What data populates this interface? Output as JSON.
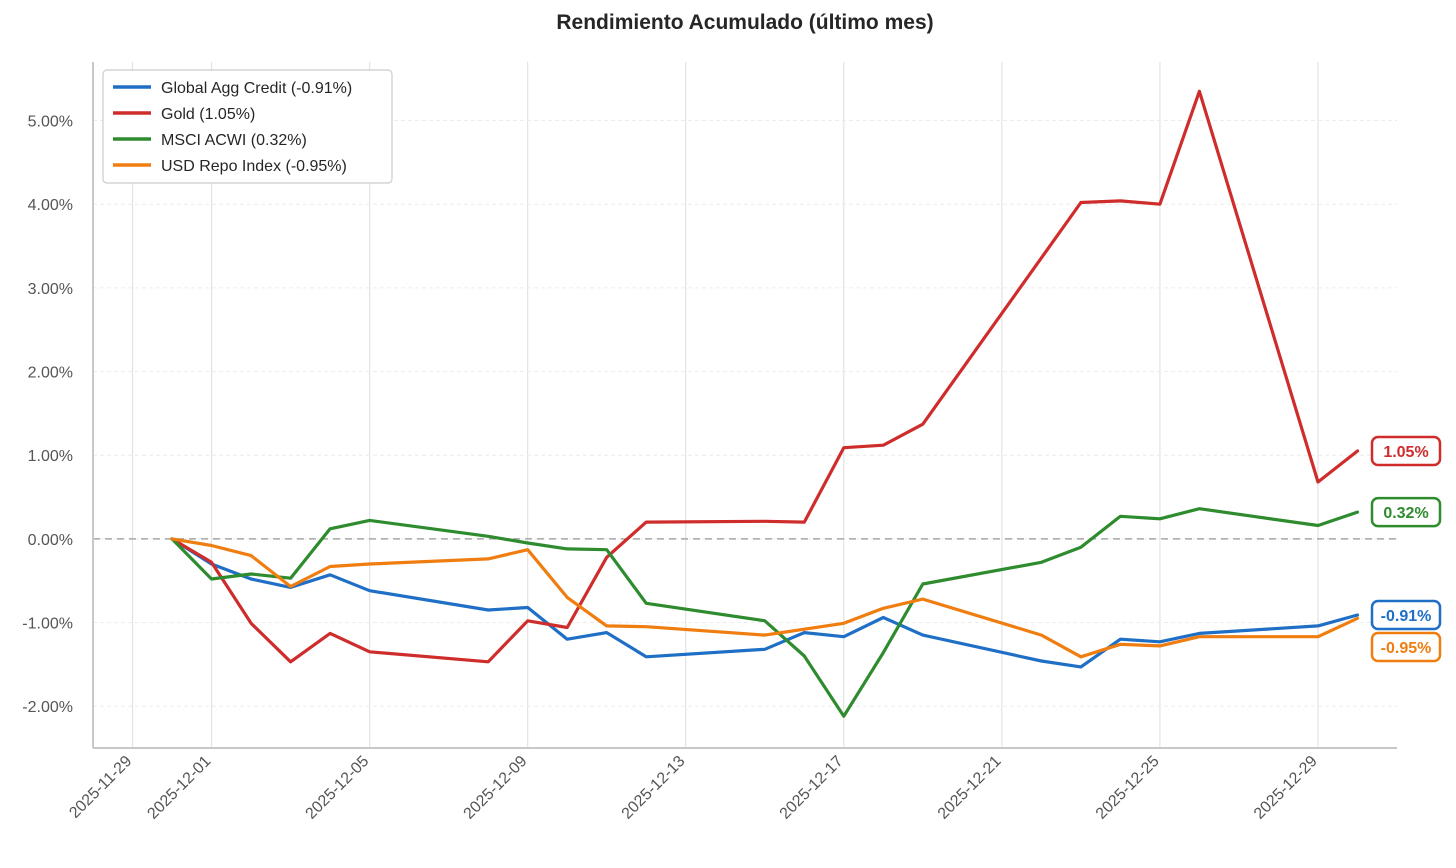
{
  "chart_data": {
    "type": "line",
    "title": "Rendimiento Acumulado (último mes)",
    "xlabel": "",
    "ylabel": "",
    "xlim": [
      "2025-11-28",
      "2025-12-31"
    ],
    "ylim": [
      -2.5,
      5.7
    ],
    "yticks": [
      -2.0,
      -1.0,
      0.0,
      1.0,
      2.0,
      3.0,
      4.0,
      5.0
    ],
    "ytick_labels": [
      "-2.00%",
      "-1.00%",
      "0.00%",
      "1.00%",
      "2.00%",
      "3.00%",
      "4.00%",
      "5.00%"
    ],
    "xticks": [
      "2025-11-29",
      "2025-12-01",
      "2025-12-05",
      "2025-12-09",
      "2025-12-13",
      "2025-12-17",
      "2025-12-21",
      "2025-12-25",
      "2025-12-29"
    ],
    "grid": true,
    "zero_line": "dashed",
    "legend_position": "top-left",
    "series": [
      {
        "name": "Global Agg Credit",
        "legend_label": "Global Agg Credit (-0.91%)",
        "end_label": "-0.91%",
        "color": "#1f6fc6",
        "points": [
          [
            "2025-11-30",
            0.0
          ],
          [
            "2025-12-01",
            -0.3
          ],
          [
            "2025-12-02",
            -0.48
          ],
          [
            "2025-12-03",
            -0.58
          ],
          [
            "2025-12-04",
            -0.43
          ],
          [
            "2025-12-05",
            -0.62
          ],
          [
            "2025-12-08",
            -0.85
          ],
          [
            "2025-12-09",
            -0.82
          ],
          [
            "2025-12-10",
            -1.2
          ],
          [
            "2025-12-11",
            -1.12
          ],
          [
            "2025-12-12",
            -1.41
          ],
          [
            "2025-12-15",
            -1.32
          ],
          [
            "2025-12-16",
            -1.12
          ],
          [
            "2025-12-17",
            -1.17
          ],
          [
            "2025-12-18",
            -0.94
          ],
          [
            "2025-12-19",
            -1.15
          ],
          [
            "2025-12-22",
            -1.46
          ],
          [
            "2025-12-23",
            -1.53
          ],
          [
            "2025-12-24",
            -1.2
          ],
          [
            "2025-12-25",
            -1.23
          ],
          [
            "2025-12-26",
            -1.13
          ],
          [
            "2025-12-29",
            -1.04
          ],
          [
            "2025-12-30",
            -0.91
          ]
        ]
      },
      {
        "name": "Gold",
        "legend_label": "Gold (1.05%)",
        "end_label": "1.05%",
        "color": "#cf2c2c",
        "points": [
          [
            "2025-11-30",
            0.0
          ],
          [
            "2025-12-01",
            -0.28
          ],
          [
            "2025-12-02",
            -1.01
          ],
          [
            "2025-12-03",
            -1.47
          ],
          [
            "2025-12-04",
            -1.13
          ],
          [
            "2025-12-05",
            -1.35
          ],
          [
            "2025-12-08",
            -1.47
          ],
          [
            "2025-12-09",
            -0.98
          ],
          [
            "2025-12-10",
            -1.06
          ],
          [
            "2025-12-11",
            -0.22
          ],
          [
            "2025-12-12",
            0.2
          ],
          [
            "2025-12-15",
            0.21
          ],
          [
            "2025-12-16",
            0.2
          ],
          [
            "2025-12-17",
            1.09
          ],
          [
            "2025-12-18",
            1.12
          ],
          [
            "2025-12-19",
            1.37
          ],
          [
            "2025-12-23",
            4.02
          ],
          [
            "2025-12-24",
            4.04
          ],
          [
            "2025-12-25",
            4.0
          ],
          [
            "2025-12-26",
            5.35
          ],
          [
            "2025-12-29",
            0.68
          ],
          [
            "2025-12-30",
            1.05
          ]
        ]
      },
      {
        "name": "MSCI ACWI",
        "legend_label": "MSCI ACWI (0.32%)",
        "end_label": "0.32%",
        "color": "#2e8b2e",
        "points": [
          [
            "2025-11-30",
            0.0
          ],
          [
            "2025-12-01",
            -0.48
          ],
          [
            "2025-12-02",
            -0.42
          ],
          [
            "2025-12-03",
            -0.47
          ],
          [
            "2025-12-04",
            0.12
          ],
          [
            "2025-12-05",
            0.22
          ],
          [
            "2025-12-08",
            0.03
          ],
          [
            "2025-12-09",
            -0.05
          ],
          [
            "2025-12-10",
            -0.12
          ],
          [
            "2025-12-11",
            -0.13
          ],
          [
            "2025-12-12",
            -0.77
          ],
          [
            "2025-12-15",
            -0.98
          ],
          [
            "2025-12-16",
            -1.4
          ],
          [
            "2025-12-17",
            -2.12
          ],
          [
            "2025-12-18",
            -1.36
          ],
          [
            "2025-12-19",
            -0.54
          ],
          [
            "2025-12-22",
            -0.28
          ],
          [
            "2025-12-23",
            -0.1
          ],
          [
            "2025-12-24",
            0.27
          ],
          [
            "2025-12-25",
            0.24
          ],
          [
            "2025-12-26",
            0.36
          ],
          [
            "2025-12-29",
            0.16
          ],
          [
            "2025-12-30",
            0.32
          ]
        ]
      },
      {
        "name": "USD Repo Index",
        "legend_label": "USD Repo Index (-0.95%)",
        "end_label": "-0.95%",
        "color": "#f07d10",
        "points": [
          [
            "2025-11-30",
            0.0
          ],
          [
            "2025-12-01",
            -0.08
          ],
          [
            "2025-12-02",
            -0.2
          ],
          [
            "2025-12-03",
            -0.57
          ],
          [
            "2025-12-04",
            -0.33
          ],
          [
            "2025-12-05",
            -0.3
          ],
          [
            "2025-12-08",
            -0.24
          ],
          [
            "2025-12-09",
            -0.13
          ],
          [
            "2025-12-10",
            -0.7
          ],
          [
            "2025-12-11",
            -1.04
          ],
          [
            "2025-12-12",
            -1.05
          ],
          [
            "2025-12-15",
            -1.15
          ],
          [
            "2025-12-17",
            -1.01
          ],
          [
            "2025-12-18",
            -0.83
          ],
          [
            "2025-12-19",
            -0.72
          ],
          [
            "2025-12-22",
            -1.15
          ],
          [
            "2025-12-23",
            -1.41
          ],
          [
            "2025-12-24",
            -1.26
          ],
          [
            "2025-12-25",
            -1.28
          ],
          [
            "2025-12-26",
            -1.17
          ],
          [
            "2025-12-29",
            -1.17
          ],
          [
            "2025-12-30",
            -0.95
          ]
        ]
      }
    ]
  }
}
